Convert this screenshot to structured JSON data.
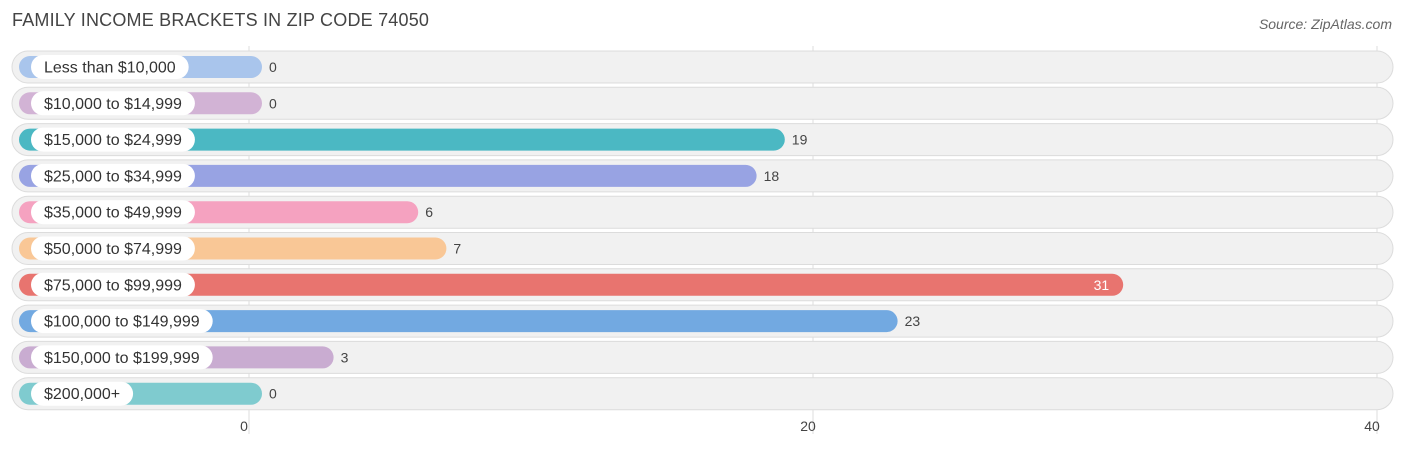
{
  "header": {
    "title": "FAMILY INCOME BRACKETS IN ZIP CODE 74050",
    "source": "Source: ZipAtlas.com"
  },
  "chart_data": {
    "type": "bar",
    "orientation": "horizontal",
    "title": "FAMILY INCOME BRACKETS IN ZIP CODE 74050",
    "categories": [
      "Less than $10,000",
      "$10,000 to $14,999",
      "$15,000 to $24,999",
      "$25,000 to $34,999",
      "$35,000 to $49,999",
      "$50,000 to $74,999",
      "$75,000 to $99,999",
      "$100,000 to $149,999",
      "$150,000 to $199,999",
      "$200,000+"
    ],
    "values": [
      0,
      0,
      19,
      18,
      6,
      7,
      31,
      23,
      3,
      0
    ],
    "colors": [
      "#a9c5ec",
      "#d2b3d5",
      "#4bb8c3",
      "#98a3e3",
      "#f5a2c0",
      "#f9c796",
      "#e8746f",
      "#72a9e1",
      "#c9acd1",
      "#7fcbcf"
    ],
    "xlim": [
      0,
      40
    ],
    "xticks": [
      0,
      20,
      40
    ],
    "grid": true
  }
}
